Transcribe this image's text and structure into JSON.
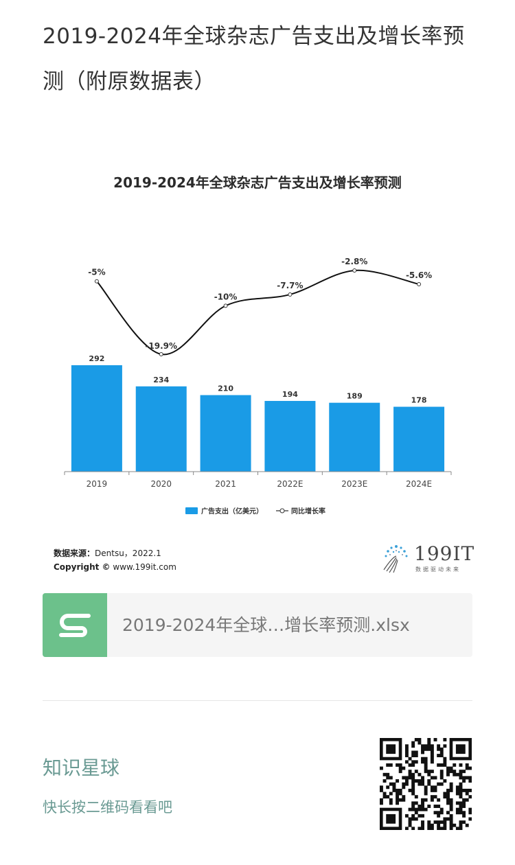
{
  "article": {
    "title": "2019-2024年全球杂志广告支出及增长率预测（附原数据表）"
  },
  "chart_data": {
    "type": "bar+line",
    "title": "2019-2024年全球杂志广告支出及增长率预测",
    "categories": [
      "2019",
      "2020",
      "2021",
      "2022E",
      "2023E",
      "2024E"
    ],
    "series": [
      {
        "name": "广告支出（亿美元）",
        "type": "bar",
        "color": "#1a9be6",
        "values": [
          292,
          234,
          210,
          194,
          189,
          178
        ],
        "labels": [
          "292",
          "234",
          "210",
          "194",
          "189",
          "178"
        ]
      },
      {
        "name": "同比增长率",
        "type": "line",
        "color": "#111111",
        "values": [
          -5,
          -19.9,
          -10,
          -7.7,
          -2.8,
          -5.6
        ],
        "labels": [
          "-5%",
          "-19.9%",
          "-10%",
          "-7.7%",
          "-2.8%",
          "-5.6%"
        ]
      }
    ],
    "legend_position": "bottom",
    "grid": false
  },
  "source": {
    "label": "数据来源：",
    "value": "Dentsu，2022.1",
    "copyright_label": "Copyright ©",
    "copyright_value": "www.199it.com"
  },
  "logo": {
    "text": "199IT",
    "sub": "数据驱动未来"
  },
  "file": {
    "name": "2019-2024年全球…增长率预测.xlsx",
    "icon": "spreadsheet-s-icon",
    "icon_color": "#6cc18b"
  },
  "promo": {
    "title": "知识星球",
    "subtitle": "快长按二维码看看吧"
  },
  "colors": {
    "accent_text": "#6a9a93"
  }
}
